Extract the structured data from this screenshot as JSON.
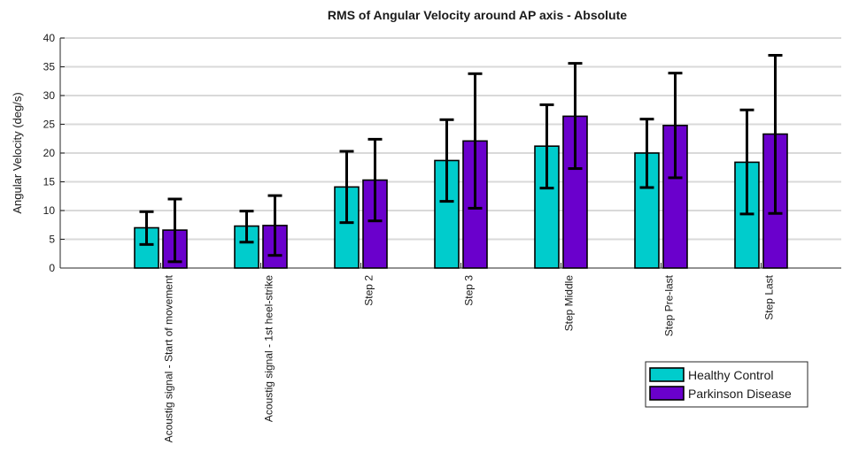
{
  "chart_data": {
    "type": "bar",
    "title": "RMS of Angular Velocity around AP axis - Absolute",
    "xlabel": "",
    "ylabel": "Angular Velocity (deg/s)",
    "ylim": [
      0,
      40
    ],
    "yticks": [
      0,
      5,
      10,
      15,
      20,
      25,
      30,
      35,
      40
    ],
    "grid": true,
    "legend_position": "bottom-right",
    "categories": [
      "Acoustig signal - Start of movement",
      "Acoustig signal - 1st heel-strike",
      "Step 2",
      "Step 3",
      "Step Middle",
      "Step Pre-last",
      "Step Last"
    ],
    "series": [
      {
        "name": "Healthy Control",
        "color": "#00cccc",
        "values": [
          7.0,
          7.3,
          14.1,
          18.7,
          21.2,
          20.0,
          18.4
        ],
        "error_low": [
          4.1,
          4.5,
          7.9,
          11.6,
          13.9,
          14.0,
          9.4
        ],
        "error_high": [
          9.8,
          9.9,
          20.3,
          25.8,
          28.4,
          25.9,
          27.5
        ]
      },
      {
        "name": "Parkinson Disease",
        "color": "#6a00cc",
        "values": [
          6.6,
          7.4,
          15.3,
          22.1,
          26.4,
          24.8,
          23.3
        ],
        "error_low": [
          1.1,
          2.2,
          8.2,
          10.4,
          17.3,
          15.7,
          9.5
        ],
        "error_high": [
          12.0,
          12.6,
          22.4,
          33.8,
          35.6,
          33.9,
          37.0
        ]
      }
    ]
  }
}
